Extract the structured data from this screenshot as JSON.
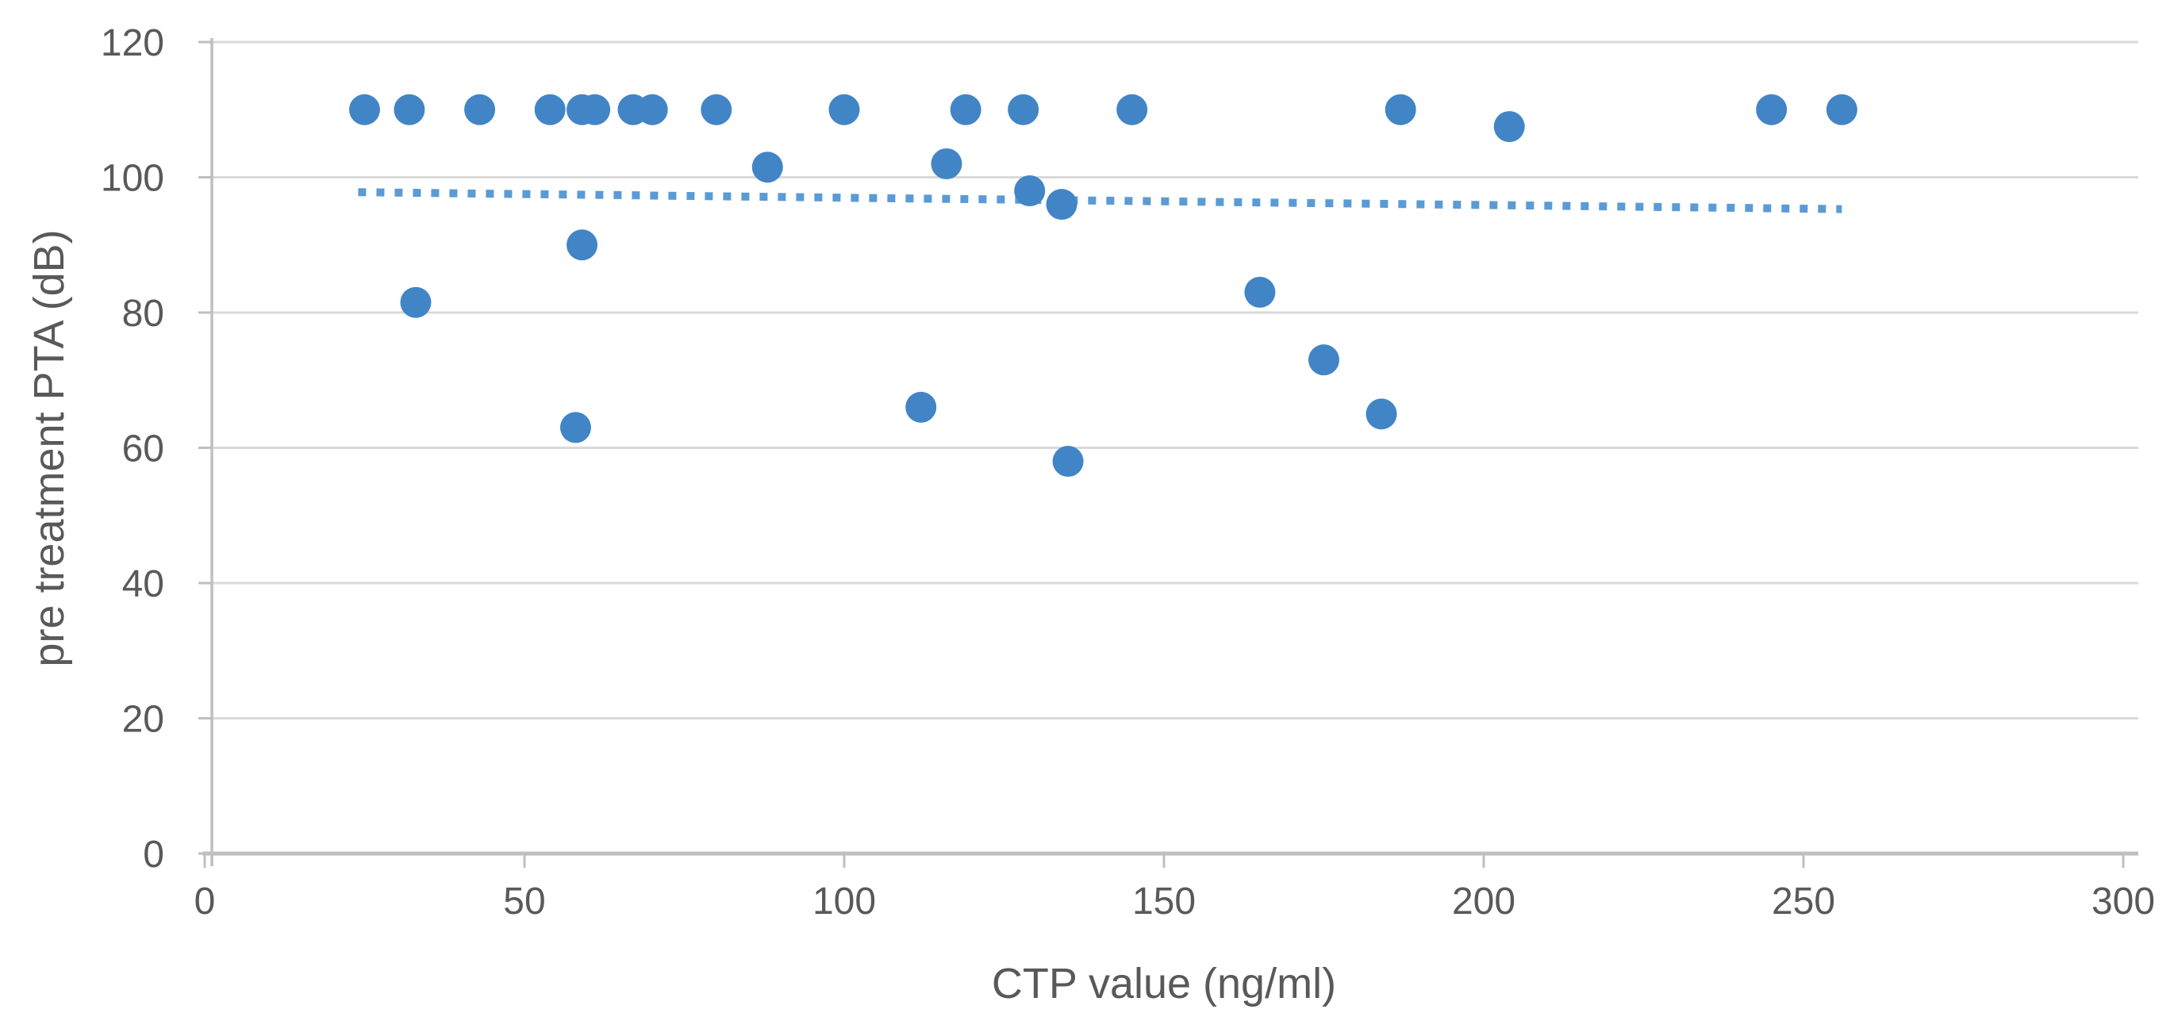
{
  "chart_data": {
    "type": "scatter",
    "title": "",
    "xlabel": "CTP value (ng/ml)",
    "ylabel": "pre treatment PTA (dB)",
    "xlim": [
      0,
      300
    ],
    "ylim": [
      0,
      120
    ],
    "x_ticks": [
      0,
      50,
      100,
      150,
      200,
      250,
      300
    ],
    "y_ticks": [
      0,
      20,
      40,
      60,
      80,
      100,
      120
    ],
    "grid": "horizontal-only",
    "legend": "none",
    "series": [
      {
        "name": "pre treatment PTA vs CTP value",
        "type": "points",
        "marker": "circle",
        "color": "#4285c6",
        "points": [
          [
            25,
            110
          ],
          [
            32,
            110
          ],
          [
            43,
            110
          ],
          [
            54,
            110
          ],
          [
            59,
            110
          ],
          [
            61,
            110
          ],
          [
            67,
            110
          ],
          [
            70,
            110
          ],
          [
            80,
            110
          ],
          [
            100,
            110
          ],
          [
            119,
            110
          ],
          [
            128,
            110
          ],
          [
            145,
            110
          ],
          [
            187,
            110
          ],
          [
            245,
            110
          ],
          [
            256,
            110
          ],
          [
            33,
            81.5
          ],
          [
            58,
            63
          ],
          [
            59,
            90
          ],
          [
            88,
            101.5
          ],
          [
            112,
            66
          ],
          [
            116,
            102
          ],
          [
            129,
            98
          ],
          [
            134,
            96
          ],
          [
            135,
            58
          ],
          [
            165,
            83
          ],
          [
            175,
            73
          ],
          [
            184,
            65
          ],
          [
            204,
            107.5
          ]
        ]
      },
      {
        "name": "linear trendline",
        "type": "trendline",
        "style": "dotted",
        "color": "#5b9bd5",
        "start": [
          24,
          97.8
        ],
        "end": [
          256,
          95.3
        ]
      }
    ]
  },
  "colors": {
    "background": "#ffffff",
    "marker": "#4285c6",
    "trendline": "#5b9bd5",
    "gridline": "#d9d9d9",
    "axis_line": "#bfbfbf",
    "tick_label": "#595959",
    "axis_title": "#595959"
  }
}
